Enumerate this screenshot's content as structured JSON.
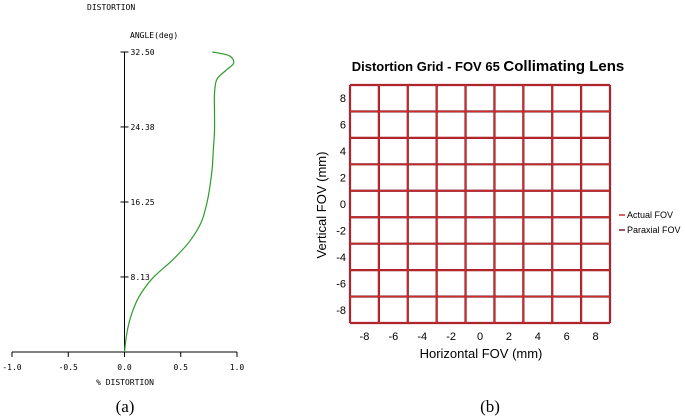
{
  "chart_data": [
    {
      "type": "line",
      "title": "DISTORTION",
      "xlabel": "% DISTORTION",
      "ylabel": "ANGLE(deg)",
      "xlim": [
        -1.0,
        1.0
      ],
      "ylim": [
        0,
        32.5
      ],
      "x_ticks": [
        "-1.0",
        "-0.5",
        "0.0",
        "0.5",
        "1.0"
      ],
      "y_ticks": [
        "8.13",
        "16.25",
        "24.38",
        "32.50"
      ],
      "x_tick_values": [
        -1.0,
        -0.5,
        0.0,
        0.5,
        1.0
      ],
      "y_tick_values": [
        8.13,
        16.25,
        24.38,
        32.5
      ],
      "series_color": "#2e9b2e",
      "series": [
        {
          "name": "",
          "points": [
            [
              0.0,
              0.0
            ],
            [
              0.02,
              2.0
            ],
            [
              0.06,
              4.0
            ],
            [
              0.13,
              6.0
            ],
            [
              0.25,
              8.0
            ],
            [
              0.43,
              10.0
            ],
            [
              0.58,
              12.0
            ],
            [
              0.68,
              14.0
            ],
            [
              0.73,
              16.0
            ],
            [
              0.76,
              18.0
            ],
            [
              0.78,
              20.0
            ],
            [
              0.79,
              22.0
            ],
            [
              0.8,
              24.0
            ],
            [
              0.8,
              26.0
            ],
            [
              0.8,
              28.0
            ],
            [
              0.82,
              29.5
            ],
            [
              0.9,
              30.5
            ],
            [
              0.97,
              31.3
            ],
            [
              0.93,
              32.1
            ],
            [
              0.78,
              32.5
            ]
          ]
        }
      ],
      "caption": "(a)"
    },
    {
      "type": "grid",
      "title": "Distortion Grid - FOV 65 Collimating Lens",
      "title_part1": "Distortion Grid - FOV 65 ",
      "title_part2": "Collimating Lens",
      "xlabel": "Horizontal FOV (mm)",
      "ylabel": "Vertical FOV (mm)",
      "xlim": [
        -9,
        9
      ],
      "ylim": [
        -9,
        9
      ],
      "x_ticks": [
        "-8",
        "-6",
        "-4",
        "-2",
        "0",
        "2",
        "4",
        "6",
        "8"
      ],
      "y_ticks": [
        "8",
        "6",
        "4",
        "2",
        "0",
        "-2",
        "-4",
        "-6",
        "-8"
      ],
      "x_tick_values": [
        -8,
        -6,
        -4,
        -2,
        0,
        2,
        4,
        6,
        8
      ],
      "y_tick_values": [
        8,
        6,
        4,
        2,
        0,
        -2,
        -4,
        -6,
        -8
      ],
      "grid_lines": [
        -9,
        -7,
        -5,
        -3,
        -1,
        1,
        3,
        5,
        7,
        9
      ],
      "series": [
        {
          "name": "Actual FOV",
          "color": "#d42a2a"
        },
        {
          "name": "Paraxial FOV",
          "color": "#7a1a2a"
        }
      ],
      "legend_placement": "right",
      "caption": "(b)"
    }
  ]
}
